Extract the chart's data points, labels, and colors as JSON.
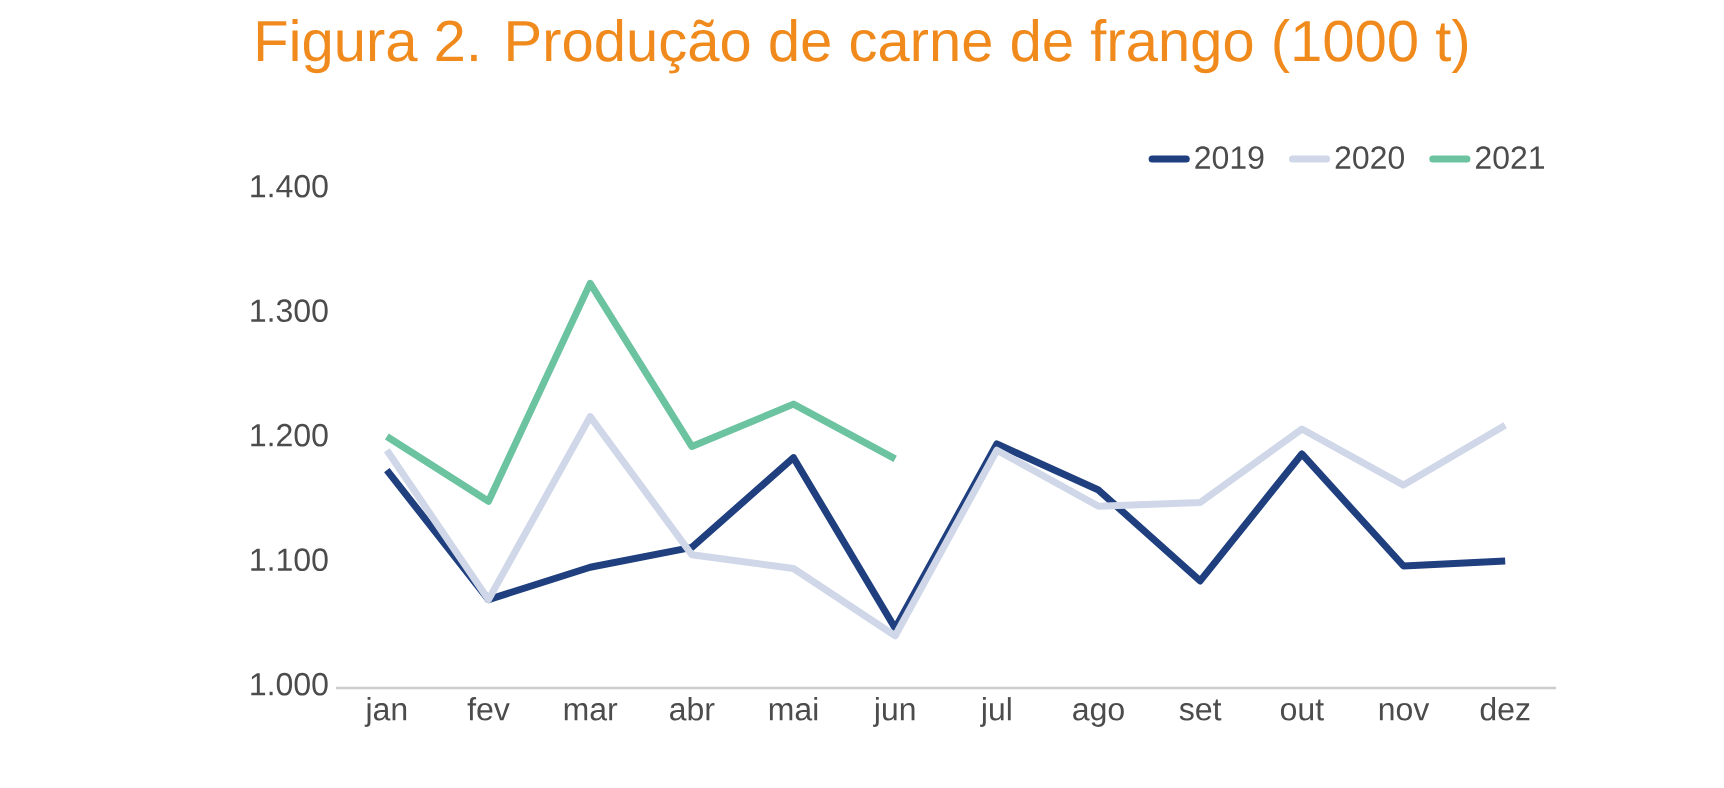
{
  "chart_data": {
    "type": "line",
    "title": "Figura 2. Produção de carne de frango (1000 t)",
    "categories": [
      "jan",
      "fev",
      "mar",
      "abr",
      "mai",
      "jun",
      "jul",
      "ago",
      "set",
      "out",
      "nov",
      "dez"
    ],
    "series": [
      {
        "name": "2019",
        "color": "#1f3f7f",
        "values": [
          1175,
          1071,
          1097,
          1113,
          1185,
          1048,
          1196,
          1159,
          1086,
          1188,
          1098,
          1102
        ]
      },
      {
        "name": "2020",
        "color": "#cfd7e8",
        "values": [
          1191,
          1071,
          1218,
          1107,
          1096,
          1042,
          1191,
          1146,
          1149,
          1208,
          1163,
          1211
        ]
      },
      {
        "name": "2021",
        "color": "#6cc3a0",
        "values": [
          1202,
          1150,
          1325,
          1194,
          1228,
          1184,
          null,
          null,
          null,
          null,
          null,
          null
        ]
      }
    ],
    "ylim": [
      1000,
      1400
    ],
    "yticks": [
      {
        "value": 1000,
        "label": "1.000"
      },
      {
        "value": 1100,
        "label": "1.100"
      },
      {
        "value": 1200,
        "label": "1.200"
      },
      {
        "value": 1300,
        "label": "1.300"
      },
      {
        "value": 1400,
        "label": "1.400"
      }
    ],
    "legend": "top right",
    "marker": "none",
    "line_style": "solid"
  }
}
